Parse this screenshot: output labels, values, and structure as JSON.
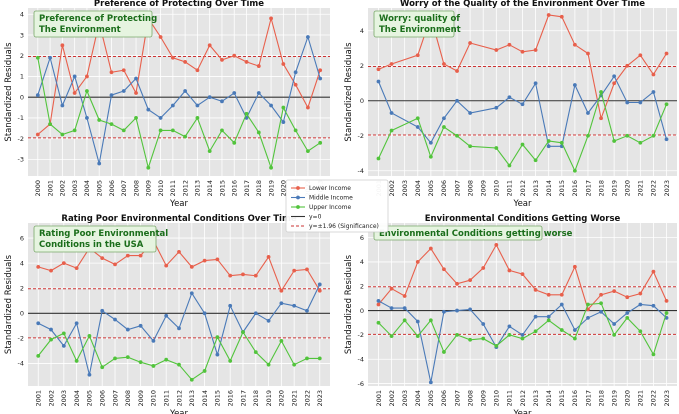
{
  "colors": {
    "lower": "#e8604c",
    "middle": "#4a7ab8",
    "upper": "#52c43c",
    "zero": "#333333",
    "significance": "#cc3333",
    "annotation_bg": "#e6f4e0",
    "annotation_border": "#7aa86a",
    "annotation_text": "#1b6e1b"
  },
  "legend": {
    "entries": [
      {
        "label": "Lower Income",
        "kind": "lower"
      },
      {
        "label": "Middle Income",
        "kind": "middle"
      },
      {
        "label": "Upper Income",
        "kind": "upper"
      },
      {
        "label": "y=0",
        "kind": "zero"
      },
      {
        "label": "y=±1.96 (Significance)",
        "kind": "significance"
      }
    ]
  },
  "chart_data": [
    {
      "type": "line",
      "title": "Preference of Protecting Over Time",
      "annotation": "Preference of Protecting\nThe Environment",
      "xlabel": "Year",
      "ylabel": "Standardized Residuals",
      "ylim": [
        -3.8,
        4.3
      ],
      "yticks": [
        -3,
        -2,
        -1,
        0,
        1,
        2,
        3,
        4
      ],
      "x": [
        2000,
        2001,
        2002,
        2003,
        2004,
        2005,
        2006,
        2007,
        2008,
        2009,
        2010,
        2011,
        2012,
        2013,
        2014,
        2015,
        2016,
        2017,
        2018,
        2019,
        2020,
        2021,
        2022,
        2023
      ],
      "series": [
        {
          "name": "Lower Income",
          "values": [
            -1.8,
            -1.3,
            2.5,
            0.2,
            1.0,
            3.6,
            1.2,
            1.3,
            0.2,
            3.8,
            2.9,
            1.9,
            1.7,
            1.3,
            2.5,
            1.8,
            2.0,
            1.7,
            1.5,
            3.8,
            1.6,
            0.6,
            -0.5,
            1.3
          ]
        },
        {
          "name": "Middle Income",
          "values": [
            0.1,
            1.9,
            -0.4,
            1.0,
            -1.0,
            -3.2,
            0.1,
            0.3,
            0.9,
            -0.6,
            -1.0,
            -0.4,
            0.3,
            -0.4,
            0.0,
            -0.2,
            0.2,
            -1.0,
            0.2,
            -0.4,
            -1.2,
            1.2,
            2.9,
            0.9
          ]
        },
        {
          "name": "Upper Income",
          "values": [
            1.9,
            -1.3,
            -1.8,
            -1.6,
            0.3,
            -1.1,
            -1.3,
            -1.6,
            -1.0,
            -3.4,
            -1.6,
            -1.6,
            -1.9,
            -1.0,
            -2.6,
            -1.6,
            -2.2,
            -0.8,
            -1.7,
            -3.4,
            -0.5,
            -1.6,
            -2.6,
            -2.2
          ]
        }
      ]
    },
    {
      "type": "line",
      "title": "Worry of the Quality of the Environment Over Time",
      "annotation": "Worry: quality of\nThe Environment",
      "xlabel": "Year",
      "ylabel": "Standardized Residuals",
      "ylim": [
        -4.3,
        5.3
      ],
      "yticks": [
        -4,
        -2,
        0,
        2,
        4
      ],
      "x": [
        2001,
        2002,
        2004,
        2005,
        2006,
        2007,
        2008,
        2010,
        2011,
        2012,
        2013,
        2014,
        2015,
        2016,
        2017,
        2018,
        2019,
        2020,
        2021,
        2022,
        2023
      ],
      "xticks": [
        2001,
        2002,
        2003,
        2004,
        2005,
        2006,
        2007,
        2008,
        2009,
        2010,
        2011,
        2012,
        2013,
        2014,
        2015,
        2016,
        2017,
        2018,
        2019,
        2020,
        2021,
        2022,
        2023
      ],
      "series": [
        {
          "name": "Lower Income",
          "values": [
            1.8,
            2.1,
            2.6,
            4.8,
            2.1,
            1.7,
            3.3,
            2.9,
            3.2,
            2.8,
            2.9,
            4.9,
            4.8,
            3.2,
            2.7,
            -1.0,
            1.0,
            2.0,
            2.6,
            1.5,
            2.7
          ]
        },
        {
          "name": "Middle Income",
          "values": [
            1.1,
            -0.7,
            -1.5,
            -2.4,
            -1.0,
            0.0,
            -0.7,
            -0.4,
            0.2,
            -0.2,
            1.0,
            -2.6,
            -2.6,
            0.9,
            -0.7,
            0.3,
            1.4,
            -0.1,
            -0.1,
            0.5,
            -2.2
          ]
        },
        {
          "name": "Upper Income",
          "values": [
            -3.3,
            -1.7,
            -1.0,
            -3.2,
            -1.5,
            -2.0,
            -2.6,
            -2.7,
            -3.7,
            -2.5,
            -3.4,
            -2.3,
            -2.4,
            -4.0,
            -2.0,
            0.5,
            -2.3,
            -2.0,
            -2.4,
            -2.0,
            -0.2
          ]
        }
      ]
    },
    {
      "type": "line",
      "title": "Rating Poor Environmental Conditions Over Time",
      "annotation": "Rating Poor Environmental\nConditions in the USA",
      "xlabel": "Year",
      "ylabel": "Standardized Residuals",
      "ylim": [
        -5.8,
        7.2
      ],
      "yticks": [
        -4,
        -2,
        0,
        2,
        4,
        6
      ],
      "x": [
        2001,
        2002,
        2003,
        2004,
        2005,
        2006,
        2007,
        2008,
        2009,
        2010,
        2011,
        2012,
        2013,
        2014,
        2015,
        2016,
        2017,
        2018,
        2019,
        2020,
        2021,
        2022,
        2023
      ],
      "series": [
        {
          "name": "Lower Income",
          "values": [
            3.7,
            3.4,
            4.0,
            3.6,
            5.2,
            4.4,
            3.9,
            4.6,
            4.6,
            5.8,
            3.8,
            4.9,
            3.7,
            4.2,
            4.3,
            3.0,
            3.1,
            3.0,
            4.5,
            1.8,
            3.4,
            3.5,
            1.8
          ]
        },
        {
          "name": "Middle Income",
          "values": [
            -0.8,
            -1.3,
            -2.6,
            -0.8,
            -4.9,
            0.2,
            -0.5,
            -1.3,
            -1.0,
            -2.2,
            -0.2,
            -1.2,
            1.6,
            0.0,
            -3.3,
            0.6,
            -1.5,
            0.0,
            -0.6,
            0.8,
            0.6,
            0.2,
            2.3
          ]
        },
        {
          "name": "Upper Income",
          "values": [
            -3.4,
            -2.1,
            -1.6,
            -3.8,
            -1.8,
            -4.3,
            -3.6,
            -3.5,
            -3.9,
            -4.2,
            -3.7,
            -4.1,
            -5.3,
            -4.6,
            -1.9,
            -3.8,
            -1.5,
            -3.1,
            -4.1,
            -2.2,
            -4.1,
            -3.6,
            -3.6
          ]
        }
      ]
    },
    {
      "type": "line",
      "title": "Environmental Conditions Getting Worse",
      "annotation": "Environmental Conditions getting worse",
      "xlabel": "Year",
      "ylabel": "Standardized Residuals",
      "ylim": [
        -6.2,
        7.2
      ],
      "yticks": [
        -6,
        -4,
        -2,
        0,
        2,
        4,
        6
      ],
      "x": [
        2001,
        2002,
        2003,
        2004,
        2005,
        2006,
        2007,
        2008,
        2009,
        2010,
        2011,
        2012,
        2013,
        2014,
        2015,
        2016,
        2017,
        2018,
        2019,
        2020,
        2021,
        2022,
        2023
      ],
      "series": [
        {
          "name": "Lower Income",
          "values": [
            0.5,
            1.8,
            1.2,
            4.0,
            5.1,
            3.4,
            2.2,
            2.5,
            3.5,
            5.4,
            3.3,
            3.0,
            1.7,
            1.3,
            1.3,
            3.6,
            0.1,
            1.3,
            1.6,
            1.1,
            1.4,
            3.2,
            0.8
          ]
        },
        {
          "name": "Middle Income",
          "values": [
            0.8,
            0.2,
            0.2,
            -0.9,
            -5.9,
            -0.1,
            0.0,
            0.1,
            -1.1,
            -3.0,
            -1.3,
            -2.0,
            -0.5,
            -0.5,
            0.5,
            -1.6,
            -0.6,
            -0.1,
            -1.1,
            -0.2,
            0.5,
            0.4,
            -0.6
          ]
        },
        {
          "name": "Upper Income",
          "values": [
            -1.0,
            -2.1,
            -0.8,
            -2.1,
            -0.8,
            -3.4,
            -2.0,
            -2.4,
            -2.3,
            -2.9,
            -2.0,
            -2.3,
            -1.7,
            -0.8,
            -1.6,
            -2.3,
            0.5,
            0.6,
            -2.0,
            -0.6,
            -1.7,
            -3.6,
            -0.2
          ]
        }
      ]
    }
  ]
}
